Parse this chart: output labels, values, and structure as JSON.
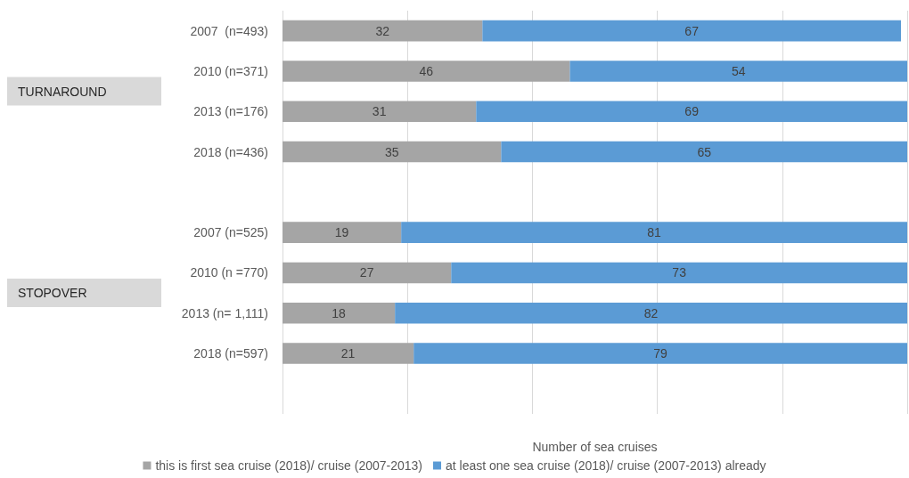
{
  "chart_data": {
    "type": "bar",
    "orientation": "horizontal",
    "stacked": true,
    "xlabel": "Number of sea cruises",
    "categories": [
      "2007  (n=493)",
      "2010 (n=371)",
      "2013 (n=176)",
      "2018 (n=436)",
      null,
      "2007 (n=525)",
      "2010 (n =770)",
      "2013 (n= 1,111)",
      "2018 (n=597)",
      null
    ],
    "series": [
      {
        "name": "this is first sea cruise (2018)/ cruise (2007-2013)",
        "color": "#a5a5a5",
        "values": [
          32,
          46,
          31,
          35,
          null,
          19,
          27,
          18,
          21,
          null
        ]
      },
      {
        "name": "at least one sea cruise (2018)/ cruise (2007-2013) already",
        "color": "#5b9bd5",
        "values": [
          67,
          54,
          69,
          65,
          null,
          81,
          73,
          82,
          79,
          null
        ]
      }
    ],
    "xlim": [
      0,
      100
    ],
    "xticks": [
      {
        "value": 0,
        "label": null
      },
      {
        "value": 20,
        "label": null
      },
      {
        "value": 40,
        "label": null
      },
      {
        "value": 60,
        "label": null
      },
      {
        "value": 80,
        "label": null
      },
      {
        "value": 100,
        "label": null
      }
    ],
    "tick_labels": "y",
    "grid": "x",
    "legend": "bottom",
    "data_labels": true,
    "annotations": [
      "TURNAROUND",
      "STOPOVER"
    ]
  }
}
